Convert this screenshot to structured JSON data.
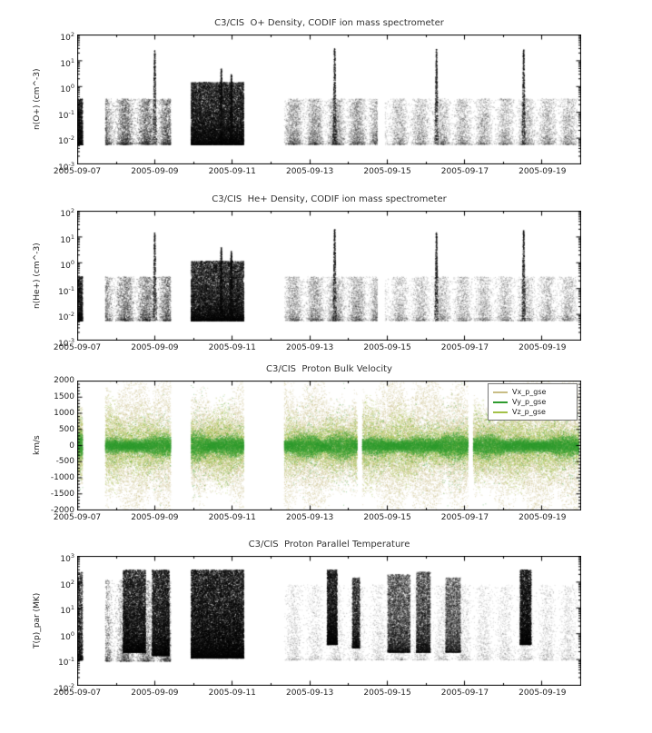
{
  "page": {
    "background": "#ffffff"
  },
  "chart_data": [
    {
      "type": "scatter",
      "title": "C3/CIS  O+ Density, CODIF ion mass spectrometer",
      "ylabel": "n(O+) (cm^-3)",
      "yscale": "log",
      "ylim": [
        0.001,
        100
      ],
      "ytick_labels": [
        "10^2",
        "10^1",
        "10^0",
        "10^-1",
        "10^-2",
        "10^-3"
      ],
      "xlim": [
        "2005-09-07",
        "2005-09-20"
      ],
      "xtick_labels": [
        "2005-09-07",
        "2005-09-09",
        "2005-09-11",
        "2005-09-13",
        "2005-09-15",
        "2005-09-17",
        "2005-09-19"
      ],
      "point_color": "#000000",
      "noise_band": [
        0.006,
        0.35
      ],
      "segments": [
        {
          "x0": 0.0,
          "x1": 0.01,
          "n": 1600,
          "alpha": 0.5
        },
        {
          "x0": 0.055,
          "x1": 0.185,
          "n": 9000,
          "alpha": 0.3
        },
        {
          "x0": 0.225,
          "x1": 0.33,
          "n": 17000,
          "alpha": 0.55,
          "band": [
            0.006,
            1.5
          ]
        },
        {
          "x0": 0.41,
          "x1": 0.595,
          "n": 12000,
          "alpha": 0.22
        },
        {
          "x0": 0.61,
          "x1": 0.995,
          "n": 15000,
          "alpha": 0.22
        }
      ],
      "spikes": [
        {
          "x": 0.153,
          "peak": 25
        },
        {
          "x": 0.285,
          "peak": 5
        },
        {
          "x": 0.305,
          "peak": 3
        },
        {
          "x": 0.51,
          "peak": 30
        },
        {
          "x": 0.712,
          "peak": 28
        },
        {
          "x": 0.885,
          "peak": 27
        }
      ]
    },
    {
      "type": "scatter",
      "title": "C3/CIS  He+ Density, CODIF ion mass spectrometer",
      "ylabel": "n(He+) (cm^-3)",
      "yscale": "log",
      "ylim": [
        0.001,
        100
      ],
      "ytick_labels": [
        "10^2",
        "10^1",
        "10^0",
        "10^-1",
        "10^-2",
        "10^-3"
      ],
      "xlim": [
        "2005-09-07",
        "2005-09-20"
      ],
      "xtick_labels": [
        "2005-09-07",
        "2005-09-09",
        "2005-09-11",
        "2005-09-13",
        "2005-09-15",
        "2005-09-17",
        "2005-09-19"
      ],
      "point_color": "#000000",
      "noise_band": [
        0.006,
        0.3
      ],
      "segments": [
        {
          "x0": 0.0,
          "x1": 0.01,
          "n": 1500,
          "alpha": 0.45
        },
        {
          "x0": 0.055,
          "x1": 0.185,
          "n": 8000,
          "alpha": 0.28
        },
        {
          "x0": 0.225,
          "x1": 0.33,
          "n": 15000,
          "alpha": 0.55,
          "band": [
            0.006,
            1.2
          ]
        },
        {
          "x0": 0.41,
          "x1": 0.595,
          "n": 11000,
          "alpha": 0.2
        },
        {
          "x0": 0.61,
          "x1": 0.995,
          "n": 14000,
          "alpha": 0.2
        }
      ],
      "spikes": [
        {
          "x": 0.153,
          "peak": 15
        },
        {
          "x": 0.285,
          "peak": 4
        },
        {
          "x": 0.305,
          "peak": 3
        },
        {
          "x": 0.51,
          "peak": 20
        },
        {
          "x": 0.712,
          "peak": 15
        },
        {
          "x": 0.885,
          "peak": 18
        }
      ]
    },
    {
      "type": "scatter",
      "title": "C3/CIS  Proton Bulk Velocity",
      "ylabel": "km/s",
      "yscale": "linear",
      "ylim": [
        -2000,
        2000
      ],
      "ytick_labels": [
        "2000",
        "1500",
        "1000",
        "500",
        "0",
        "-500",
        "-1000",
        "-1500",
        "-2000"
      ],
      "xlim": [
        "2005-09-07",
        "2005-09-20"
      ],
      "xtick_labels": [
        "2005-09-07",
        "2005-09-09",
        "2005-09-11",
        "2005-09-13",
        "2005-09-15",
        "2005-09-17",
        "2005-09-19"
      ],
      "legend": {
        "position": "top-right"
      },
      "series": [
        {
          "name": "Vx_p_gse",
          "color": "#c8bd85",
          "spread": 1950,
          "frac": 0.4
        },
        {
          "name": "Vy_p_gse",
          "color": "#2e9b2e",
          "spread": 300,
          "frac": 0.35
        },
        {
          "name": "Vz_p_gse",
          "color": "#a3c148",
          "spread": 950,
          "frac": 0.25
        }
      ],
      "segments": [
        {
          "x0": 0.0,
          "x1": 0.01,
          "n": 1600
        },
        {
          "x0": 0.055,
          "x1": 0.185,
          "n": 16000
        },
        {
          "x0": 0.225,
          "x1": 0.33,
          "n": 14000
        },
        {
          "x0": 0.41,
          "x1": 0.555,
          "n": 18000
        },
        {
          "x0": 0.565,
          "x1": 0.775,
          "n": 26000
        },
        {
          "x0": 0.785,
          "x1": 0.995,
          "n": 26000
        }
      ]
    },
    {
      "type": "scatter",
      "title": "C3/CIS  Proton Parallel Temperature",
      "ylabel": "T(p)_par (MK)",
      "yscale": "log",
      "ylim": [
        0.01,
        1000
      ],
      "ytick_labels": [
        "10^3",
        "10^2",
        "10^1",
        "10^0",
        "10^-1",
        "10^-2"
      ],
      "xlim": [
        "2005-09-07",
        "2005-09-20"
      ],
      "xtick_labels": [
        "2005-09-07",
        "2005-09-09",
        "2005-09-11",
        "2005-09-13",
        "2005-09-15",
        "2005-09-17",
        "2005-09-19"
      ],
      "point_color": "#000000",
      "noise_band": [
        0.09,
        120
      ],
      "segments": [
        {
          "x0": 0.0,
          "x1": 0.01,
          "n": 1400,
          "alpha": 0.55,
          "band": [
            0.1,
            250
          ]
        },
        {
          "x0": 0.055,
          "x1": 0.185,
          "n": 9000,
          "alpha": 0.28
        },
        {
          "x0": 0.09,
          "x1": 0.135,
          "n": 8000,
          "alpha": 0.6,
          "band": [
            0.2,
            300
          ]
        },
        {
          "x0": 0.148,
          "x1": 0.182,
          "n": 6500,
          "alpha": 0.6,
          "band": [
            0.15,
            300
          ]
        },
        {
          "x0": 0.225,
          "x1": 0.33,
          "n": 22000,
          "alpha": 0.65,
          "band": [
            0.12,
            300
          ]
        },
        {
          "x0": 0.41,
          "x1": 0.995,
          "n": 15000,
          "alpha": 0.16,
          "band": [
            0.1,
            80
          ]
        },
        {
          "x0": 0.495,
          "x1": 0.515,
          "n": 4500,
          "alpha": 0.55,
          "band": [
            0.4,
            300
          ]
        },
        {
          "x0": 0.545,
          "x1": 0.56,
          "n": 2500,
          "alpha": 0.45,
          "band": [
            0.3,
            150
          ]
        },
        {
          "x0": 0.615,
          "x1": 0.66,
          "n": 6000,
          "alpha": 0.4,
          "band": [
            0.2,
            200
          ]
        },
        {
          "x0": 0.672,
          "x1": 0.7,
          "n": 4500,
          "alpha": 0.4,
          "band": [
            0.2,
            250
          ]
        },
        {
          "x0": 0.73,
          "x1": 0.76,
          "n": 4000,
          "alpha": 0.35,
          "band": [
            0.2,
            150
          ]
        },
        {
          "x0": 0.878,
          "x1": 0.9,
          "n": 4500,
          "alpha": 0.6,
          "band": [
            0.4,
            300
          ]
        }
      ],
      "spikes": []
    }
  ]
}
